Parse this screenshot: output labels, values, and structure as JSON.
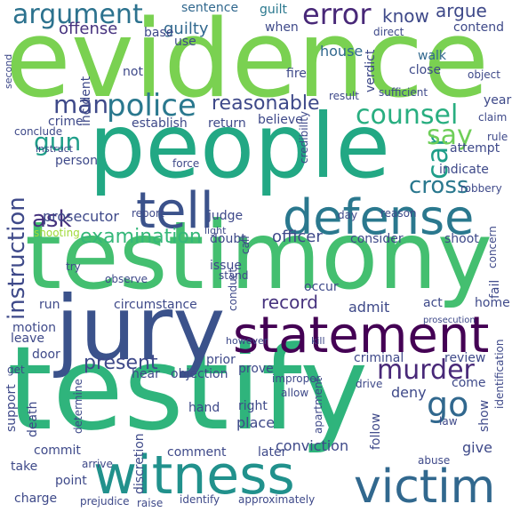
{
  "words": [
    {
      "text": "evidence",
      "color": "#7ad151"
    },
    {
      "text": "people",
      "color": "#22a884"
    },
    {
      "text": "testimony",
      "color": "#44bf70"
    },
    {
      "text": "testify",
      "color": "#2fb47c"
    },
    {
      "text": "jury",
      "color": "#3b528b"
    },
    {
      "text": "statement",
      "color": "#440154"
    },
    {
      "text": "defense",
      "color": "#2a788e"
    },
    {
      "text": "witness",
      "color": "#21918c"
    },
    {
      "text": "victim",
      "color": "#31688e"
    },
    {
      "text": "tell",
      "color": "#3b528b"
    },
    {
      "text": "argument",
      "color": "#2c728e"
    },
    {
      "text": "error",
      "color": "#482878"
    },
    {
      "text": "police",
      "color": "#2a788e"
    },
    {
      "text": "counsel",
      "color": "#28ae80"
    },
    {
      "text": "man",
      "color": "#3e4989"
    },
    {
      "text": "reasonable",
      "color": "#3e4989"
    },
    {
      "text": "instruction",
      "color": "#3e4989"
    },
    {
      "text": "murder",
      "color": "#482878"
    },
    {
      "text": "examination",
      "color": "#35b779"
    },
    {
      "text": "ask",
      "color": "#46327e"
    },
    {
      "text": "cross",
      "color": "#2a788e"
    },
    {
      "text": "gun",
      "color": "#1f9e89"
    },
    {
      "text": "car",
      "color": "#1f9e89"
    },
    {
      "text": "say",
      "color": "#6ece58"
    },
    {
      "text": "go",
      "color": "#31688e"
    },
    {
      "text": "present",
      "color": "#3e4989"
    },
    {
      "text": "officer",
      "color": "#3e4989"
    },
    {
      "text": "record",
      "color": "#46327e"
    },
    {
      "text": "argue",
      "color": "#3e4989"
    },
    {
      "text": "know",
      "color": "#3e4989"
    },
    {
      "text": "guilty",
      "color": "#31688e"
    },
    {
      "text": "offense",
      "color": "#46327e"
    },
    {
      "text": "sentence",
      "color": "#31688e"
    },
    {
      "text": "guilt",
      "color": "#2a788e"
    },
    {
      "text": "contend",
      "color": "#3e4989"
    },
    {
      "text": "base",
      "color": "#3e4989"
    },
    {
      "text": "use",
      "color": "#3e4989"
    },
    {
      "text": "when",
      "color": "#3e4989"
    },
    {
      "text": "house",
      "color": "#31688e"
    },
    {
      "text": "walk",
      "color": "#31688e"
    },
    {
      "text": "fire",
      "color": "#3e4989"
    },
    {
      "text": "not",
      "color": "#3e4989"
    },
    {
      "text": "crime",
      "color": "#3e4989"
    },
    {
      "text": "establish",
      "color": "#3e4989"
    },
    {
      "text": "return",
      "color": "#3e4989"
    },
    {
      "text": "believe",
      "color": "#3e4989"
    },
    {
      "text": "person",
      "color": "#3e4989"
    },
    {
      "text": "attempt",
      "color": "#3e4989"
    },
    {
      "text": "indicate",
      "color": "#3e4989"
    },
    {
      "text": "robbery",
      "color": "#3e4989"
    },
    {
      "text": "force",
      "color": "#3e4989"
    },
    {
      "text": "judge",
      "color": "#3e4989"
    },
    {
      "text": "prosecutor",
      "color": "#3e4989"
    },
    {
      "text": "shooting",
      "color": "#a0da39"
    },
    {
      "text": "doubt",
      "color": "#3e4989"
    },
    {
      "text": "consider",
      "color": "#3e4989"
    },
    {
      "text": "shoot",
      "color": "#3e4989"
    },
    {
      "text": "issue",
      "color": "#3e4989"
    },
    {
      "text": "observe",
      "color": "#3e4989"
    },
    {
      "text": "circumstance",
      "color": "#3e4989"
    },
    {
      "text": "admit",
      "color": "#3e4989"
    },
    {
      "text": "occur",
      "color": "#3e4989"
    },
    {
      "text": "act",
      "color": "#3e4989"
    },
    {
      "text": "home",
      "color": "#3e4989"
    },
    {
      "text": "run",
      "color": "#3e4989"
    },
    {
      "text": "motion",
      "color": "#3e4989"
    },
    {
      "text": "leave",
      "color": "#3e4989"
    },
    {
      "text": "door",
      "color": "#3e4989"
    },
    {
      "text": "prior",
      "color": "#3e4989"
    },
    {
      "text": "prove",
      "color": "#3e4989"
    },
    {
      "text": "hear",
      "color": "#3e4989"
    },
    {
      "text": "objection",
      "color": "#3e4989"
    },
    {
      "text": "criminal",
      "color": "#3e4989"
    },
    {
      "text": "review",
      "color": "#3e4989"
    },
    {
      "text": "deny",
      "color": "#3e4989"
    },
    {
      "text": "come",
      "color": "#3e4989"
    },
    {
      "text": "right",
      "color": "#3e4989"
    },
    {
      "text": "place",
      "color": "#3e4989"
    },
    {
      "text": "hand",
      "color": "#3e4989"
    },
    {
      "text": "follow",
      "color": "#3e4989"
    },
    {
      "text": "give",
      "color": "#3e4989"
    },
    {
      "text": "conviction",
      "color": "#3e4989"
    },
    {
      "text": "comment",
      "color": "#3e4989"
    },
    {
      "text": "later",
      "color": "#3e4989"
    },
    {
      "text": "commit",
      "color": "#3e4989"
    },
    {
      "text": "take",
      "color": "#3e4989"
    },
    {
      "text": "point",
      "color": "#3e4989"
    },
    {
      "text": "charge",
      "color": "#3e4989"
    },
    {
      "text": "prejudice",
      "color": "#3e4989"
    },
    {
      "text": "raise",
      "color": "#3e4989"
    },
    {
      "text": "identify",
      "color": "#3e4989"
    },
    {
      "text": "approximately",
      "color": "#3e4989"
    },
    {
      "text": "support",
      "color": "#3e4989"
    },
    {
      "text": "death",
      "color": "#3e4989"
    },
    {
      "text": "discretion",
      "color": "#3e4989"
    },
    {
      "text": "determine",
      "color": "#3e4989"
    },
    {
      "text": "arrive",
      "color": "#3e4989"
    },
    {
      "text": "apartment",
      "color": "#3e4989"
    },
    {
      "text": "abuse",
      "color": "#3e4989"
    },
    {
      "text": "law",
      "color": "#3e4989"
    },
    {
      "text": "show",
      "color": "#3e4989"
    },
    {
      "text": "identification",
      "color": "#3e4989"
    },
    {
      "text": "fail",
      "color": "#3e4989"
    },
    {
      "text": "concern",
      "color": "#3e4989"
    },
    {
      "text": "rule",
      "color": "#3e4989"
    },
    {
      "text": "claim",
      "color": "#3e4989"
    },
    {
      "text": "year",
      "color": "#3e4989"
    },
    {
      "text": "object",
      "color": "#3e4989"
    },
    {
      "text": "close",
      "color": "#3e4989"
    },
    {
      "text": "result",
      "color": "#3e4989"
    },
    {
      "text": "sufficient",
      "color": "#3e4989"
    },
    {
      "text": "verdict",
      "color": "#3e4989"
    },
    {
      "text": "incident",
      "color": "#3e4989"
    },
    {
      "text": "credibility",
      "color": "#3e4989"
    },
    {
      "text": "conclude",
      "color": "#3e4989"
    },
    {
      "text": "report",
      "color": "#3e4989"
    },
    {
      "text": "day",
      "color": "#3e4989"
    },
    {
      "text": "reason",
      "color": "#3e4989"
    },
    {
      "text": "try",
      "color": "#3e4989"
    },
    {
      "text": "stand",
      "color": "#3e4989"
    },
    {
      "text": "conduct",
      "color": "#3e4989"
    },
    {
      "text": "call",
      "color": "#3e4989"
    },
    {
      "text": "improper",
      "color": "#3e4989"
    },
    {
      "text": "drive",
      "color": "#3e4989"
    },
    {
      "text": "allow",
      "color": "#3e4989"
    },
    {
      "text": "however",
      "color": "#3e4989"
    },
    {
      "text": "get",
      "color": "#3e4989"
    },
    {
      "text": "kill",
      "color": "#3e4989"
    },
    {
      "text": "second",
      "color": "#3e4989"
    },
    {
      "text": "direct",
      "color": "#3e4989"
    },
    {
      "text": "light",
      "color": "#3e4989"
    },
    {
      "text": "instruct",
      "color": "#3e4989"
    },
    {
      "text": "prosecution",
      "color": "#3e4989"
    }
  ]
}
